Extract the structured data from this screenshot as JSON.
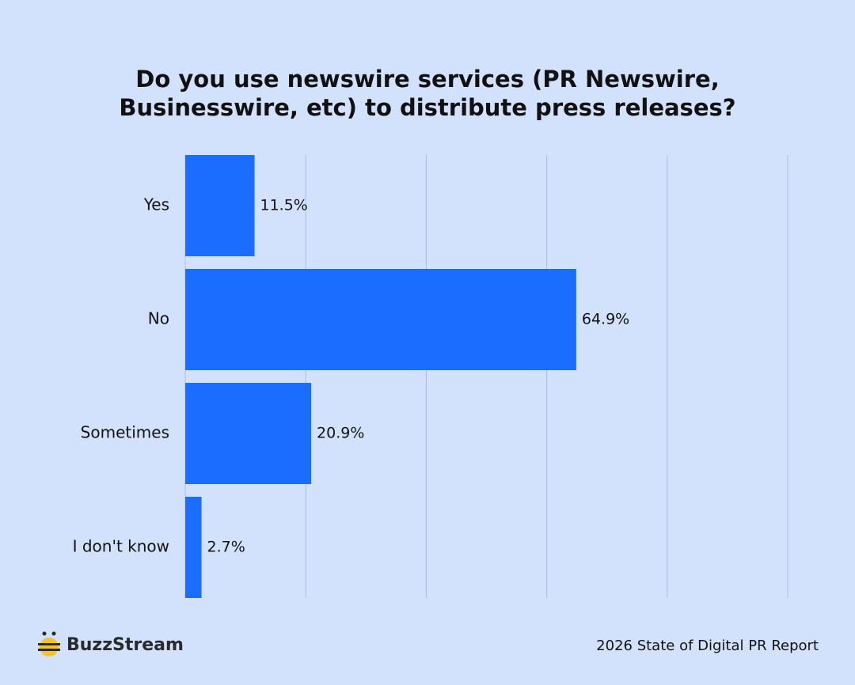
{
  "chart_data": {
    "type": "bar",
    "orientation": "horizontal",
    "title": "Do you use newswire services (PR Newswire, Businesswire, etc) to distribute press releases?",
    "categories": [
      "Yes",
      "No",
      "Sometimes",
      "I don't know"
    ],
    "values": [
      11.5,
      64.9,
      20.9,
      2.7
    ],
    "value_labels": [
      "11.5%",
      "64.9%",
      "20.9%",
      "2.7%"
    ],
    "color": "#1a6dff",
    "xlim": [
      0,
      100
    ],
    "xticks": [
      0,
      20,
      40,
      60,
      80,
      100
    ],
    "grid": true,
    "brand": "BuzzStream",
    "source": "2026 State of Digital PR Report"
  }
}
